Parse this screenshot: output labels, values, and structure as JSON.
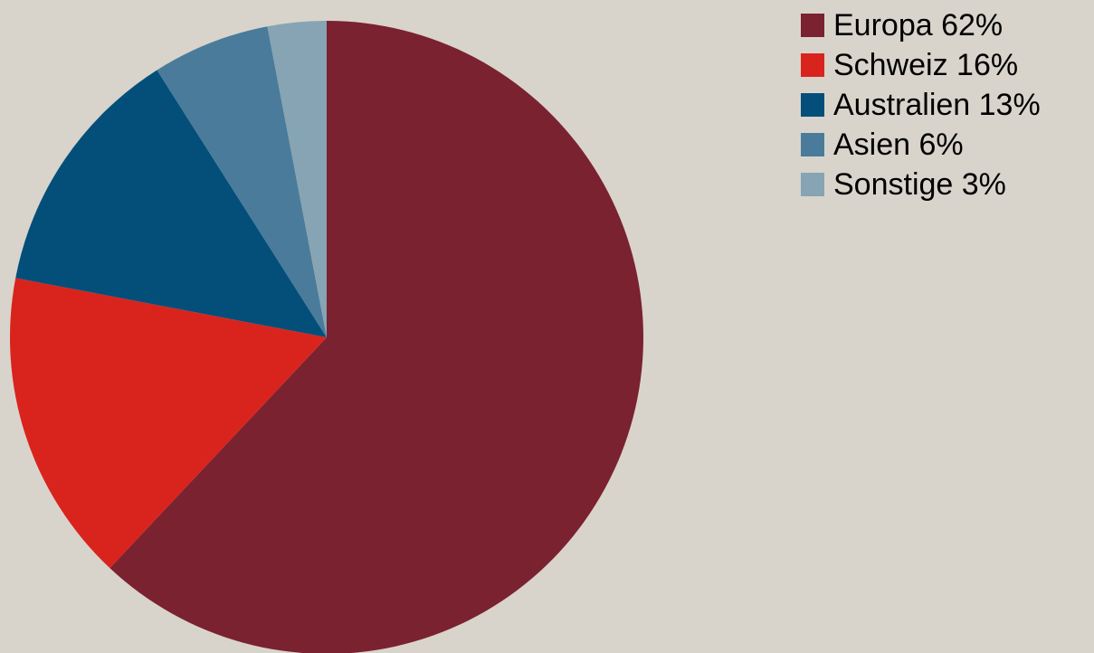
{
  "page": {
    "background": "#d8d4cb"
  },
  "chart_data": {
    "type": "pie",
    "start_angle_deg": 0,
    "direction": "clockwise",
    "legend_position": "top-right",
    "slices": [
      {
        "label": "Europa 62%",
        "value": 62,
        "color": "#7a2230"
      },
      {
        "label": "Schweiz 16%",
        "value": 16,
        "color": "#d9241d"
      },
      {
        "label": "Australien 13%",
        "value": 13,
        "color": "#034f7a"
      },
      {
        "label": "Asien 6%",
        "value": 6,
        "color": "#4a7b9b"
      },
      {
        "label": "Sonstige 3%",
        "value": 3,
        "color": "#86a4b3"
      }
    ]
  }
}
